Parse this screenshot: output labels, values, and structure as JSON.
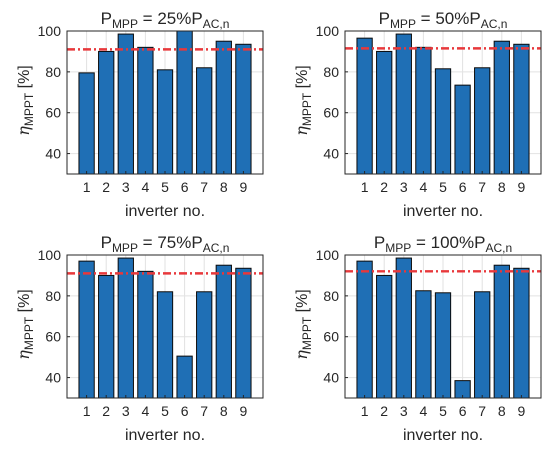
{
  "chart_data": [
    {
      "type": "bar",
      "title": {
        "main": "P",
        "main_sub": "MPP",
        "mid": " = 25%P",
        "end_sub": "AC,n"
      },
      "categories": [
        "1",
        "2",
        "3",
        "4",
        "5",
        "6",
        "7",
        "8",
        "9"
      ],
      "values": [
        79.5,
        90,
        98.5,
        92,
        81,
        100,
        82,
        95,
        93.5
      ],
      "reference_line": 91,
      "ylim": [
        30,
        100
      ],
      "yticks": [
        40,
        60,
        80,
        100
      ],
      "xlabel": "inverter no.",
      "ylabel": {
        "sym": "η",
        "sub": "MPPT",
        "unit": "[%]"
      },
      "grid": true
    },
    {
      "type": "bar",
      "title": {
        "main": "P",
        "main_sub": "MPP",
        "mid": " = 50%P",
        "end_sub": "AC,n"
      },
      "categories": [
        "1",
        "2",
        "3",
        "4",
        "5",
        "6",
        "7",
        "8",
        "9"
      ],
      "values": [
        96.5,
        90,
        98.5,
        92,
        81.5,
        73.5,
        82,
        95,
        93.5
      ],
      "reference_line": 91.5,
      "ylim": [
        30,
        100
      ],
      "yticks": [
        40,
        60,
        80,
        100
      ],
      "xlabel": "inverter no.",
      "ylabel": {
        "sym": "η",
        "sub": "MPPT",
        "unit": "[%]"
      },
      "grid": true
    },
    {
      "type": "bar",
      "title": {
        "main": "P",
        "main_sub": "MPP",
        "mid": " = 75%P",
        "end_sub": "AC,n"
      },
      "categories": [
        "1",
        "2",
        "3",
        "4",
        "5",
        "6",
        "7",
        "8",
        "9"
      ],
      "values": [
        97,
        90,
        98.5,
        92,
        82,
        50.5,
        82,
        95,
        93.5
      ],
      "reference_line": 91,
      "ylim": [
        30,
        100
      ],
      "yticks": [
        40,
        60,
        80,
        100
      ],
      "xlabel": "inverter no.",
      "ylabel": {
        "sym": "η",
        "sub": "MPPT",
        "unit": "[%]"
      },
      "grid": true
    },
    {
      "type": "bar",
      "title": {
        "main": "P",
        "main_sub": "MPP",
        "mid": " = 100%P",
        "end_sub": "AC,n"
      },
      "categories": [
        "1",
        "2",
        "3",
        "4",
        "5",
        "6",
        "7",
        "8",
        "9"
      ],
      "values": [
        97,
        90,
        98.5,
        82.5,
        81.5,
        38.5,
        82,
        95,
        93.5
      ],
      "reference_line": 92,
      "ylim": [
        30,
        100
      ],
      "yticks": [
        40,
        60,
        80,
        100
      ],
      "xlabel": "inverter no.",
      "ylabel": {
        "sym": "η",
        "sub": "MPPT",
        "unit": "[%]"
      },
      "grid": true
    }
  ],
  "colors": {
    "bar_fill": "#1f6fb5",
    "bar_stroke": "#0a0a0a",
    "reference_line": "#e8383b",
    "grid": "#e2e2e2",
    "axis": "#262626"
  }
}
